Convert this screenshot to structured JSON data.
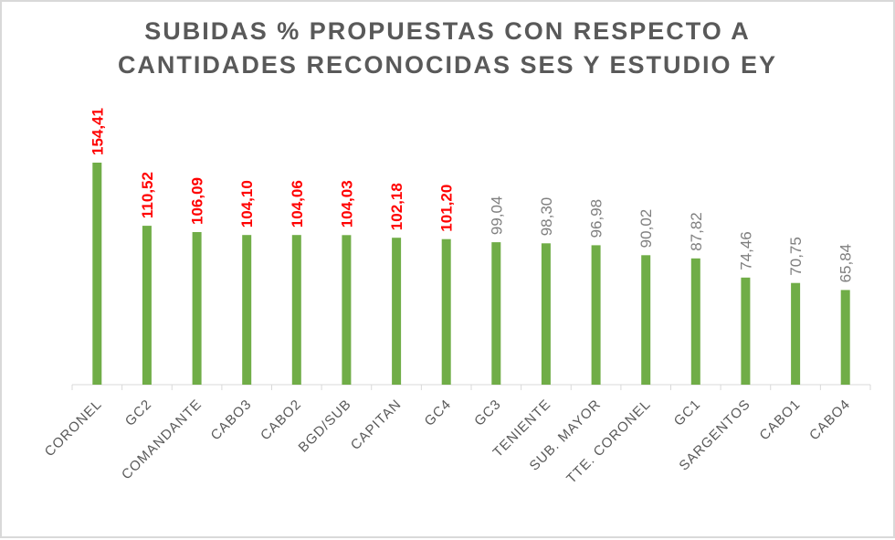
{
  "chart_data": {
    "type": "bar",
    "title_line1": "SUBIDAS % PROPUESTAS CON RESPECTO A",
    "title_line2": "CANTIDADES RECONOCIDAS SES Y ESTUDIO EY",
    "categories": [
      "CORONEL",
      "GC2",
      "COMANDANTE",
      "CABO3",
      "CABO2",
      "BGD/SUB",
      "CAPITAN",
      "GC4",
      "GC3",
      "TENIENTE",
      "SUB. MAYOR",
      "TTE. CORONEL",
      "GC1",
      "SARGENTOS",
      "CABO1",
      "CABO4"
    ],
    "values": [
      154.41,
      110.52,
      106.09,
      104.1,
      104.06,
      104.03,
      102.18,
      101.2,
      99.04,
      98.3,
      96.98,
      90.02,
      87.82,
      74.46,
      70.75,
      65.84
    ],
    "labels": [
      "154,41",
      "110,52",
      "106,09",
      "104,10",
      "104,06",
      "104,03",
      "102,18",
      "101,20",
      "99,04",
      "98,30",
      "96,98",
      "90,02",
      "87,82",
      "74,46",
      "70,75",
      "65,84"
    ],
    "ylim": [
      0,
      160
    ],
    "grid": false,
    "colors": {
      "bar": "#70ad47",
      "label_highlight": "#ff0000",
      "label_normal": "#7f7f7f",
      "title": "#595959",
      "axis": "#d9d9d9",
      "category_text": "#595959"
    },
    "highlight_threshold": 100
  }
}
